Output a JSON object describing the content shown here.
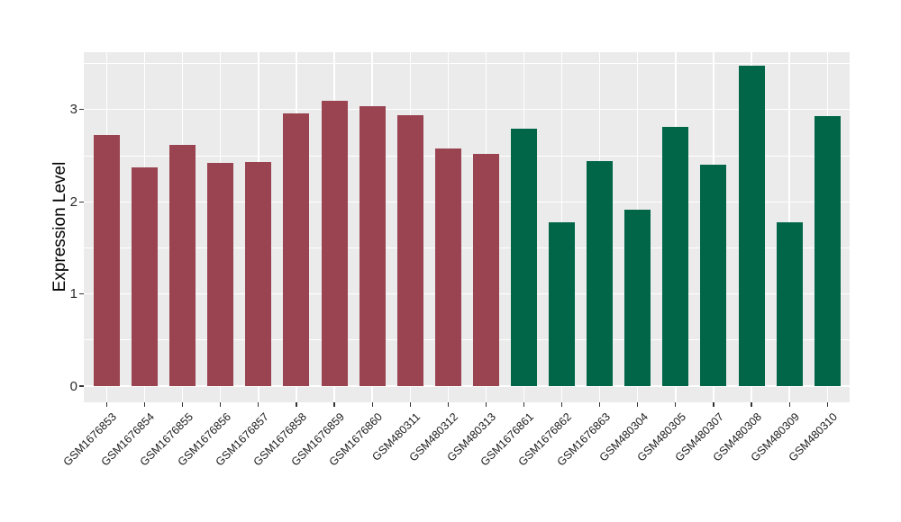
{
  "chart_data": {
    "type": "bar",
    "title": "",
    "xlabel": "",
    "ylabel": "Expression Level",
    "categories": [
      "GSM1676853",
      "GSM1676854",
      "GSM1676855",
      "GSM1676856",
      "GSM1676857",
      "GSM1676858",
      "GSM1676859",
      "GSM1676860",
      "GSM480311",
      "GSM480312",
      "GSM480313",
      "GSM1676861",
      "GSM1676862",
      "GSM1676863",
      "GSM480304",
      "GSM480305",
      "GSM480307",
      "GSM480308",
      "GSM480309",
      "GSM480310"
    ],
    "values": [
      2.72,
      2.37,
      2.62,
      2.42,
      2.43,
      2.96,
      3.1,
      3.04,
      2.94,
      2.58,
      2.52,
      2.79,
      1.78,
      2.44,
      1.91,
      2.81,
      2.4,
      3.48,
      1.78,
      2.93
    ],
    "bar_colors": [
      "#9A4452",
      "#9A4452",
      "#9A4452",
      "#9A4452",
      "#9A4452",
      "#9A4452",
      "#9A4452",
      "#9A4452",
      "#9A4452",
      "#9A4452",
      "#9A4452",
      "#006647",
      "#006647",
      "#006647",
      "#006647",
      "#006647",
      "#006647",
      "#006647",
      "#006647",
      "#006647"
    ],
    "yticks": [
      0,
      1,
      2,
      3
    ],
    "ytick_labels": [
      "0",
      "1",
      "2",
      "3"
    ],
    "yticks_minor": [
      0.5,
      1.5,
      2.5,
      3.5
    ],
    "ylim": [
      0,
      3.68
    ],
    "panel_bg": "#EBEBEB",
    "grid_color": "#FFFFFF",
    "legend_position": "none",
    "grid": "on"
  }
}
